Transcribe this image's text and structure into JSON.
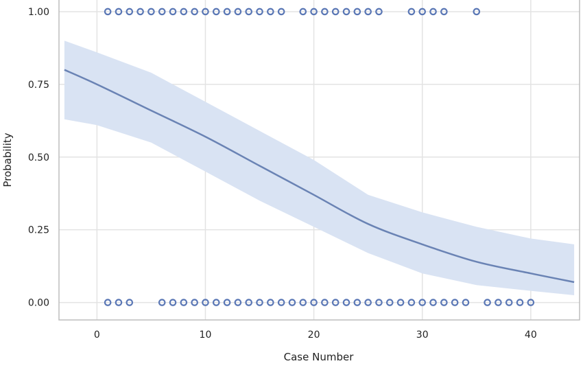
{
  "chart_data": {
    "type": "scatter",
    "xlabel": "Case Number",
    "ylabel": "Probability",
    "xlim": [
      -3.5,
      44.5
    ],
    "ylim": [
      -0.06,
      1.04
    ],
    "x_ticks": [
      0,
      10,
      20,
      30,
      40
    ],
    "y_ticks": [
      0,
      0.25,
      0.5,
      0.75,
      1.0
    ],
    "x_tick_labels": [
      "0",
      "10",
      "20",
      "30",
      "40"
    ],
    "y_tick_labels": [
      "0.00",
      "0.25",
      "0.50",
      "0.75",
      "1.00"
    ],
    "grid": true,
    "observations_y1": [
      1,
      2,
      3,
      4,
      5,
      6,
      7,
      8,
      9,
      10,
      11,
      12,
      13,
      14,
      15,
      16,
      17,
      19,
      20,
      21,
      22,
      23,
      24,
      25,
      26,
      29,
      30,
      31,
      32,
      35
    ],
    "observations_y0": [
      1,
      2,
      3,
      6,
      7,
      8,
      9,
      10,
      11,
      12,
      13,
      14,
      15,
      16,
      17,
      18,
      19,
      20,
      21,
      22,
      23,
      24,
      25,
      26,
      27,
      28,
      29,
      30,
      31,
      32,
      33,
      34,
      36,
      37,
      38,
      39,
      40
    ],
    "fit_curve": {
      "x": [
        -3,
        0,
        5,
        10,
        15,
        20,
        25,
        30,
        35,
        40,
        44
      ],
      "y": [
        0.8,
        0.75,
        0.66,
        0.57,
        0.47,
        0.37,
        0.27,
        0.2,
        0.14,
        0.1,
        0.07
      ]
    },
    "confidence_band": {
      "x": [
        -3,
        0,
        5,
        10,
        15,
        20,
        25,
        30,
        35,
        40,
        44
      ],
      "lower": [
        0.63,
        0.61,
        0.55,
        0.45,
        0.35,
        0.26,
        0.17,
        0.1,
        0.06,
        0.04,
        0.025
      ],
      "upper": [
        0.9,
        0.86,
        0.79,
        0.69,
        0.59,
        0.49,
        0.37,
        0.31,
        0.26,
        0.22,
        0.2
      ]
    },
    "colors": {
      "marker": "#5a77b5",
      "line": "#6a83b4",
      "band": "#d9e3f3",
      "grid": "#e3e3e3",
      "frame": "#bdbdbd"
    }
  }
}
